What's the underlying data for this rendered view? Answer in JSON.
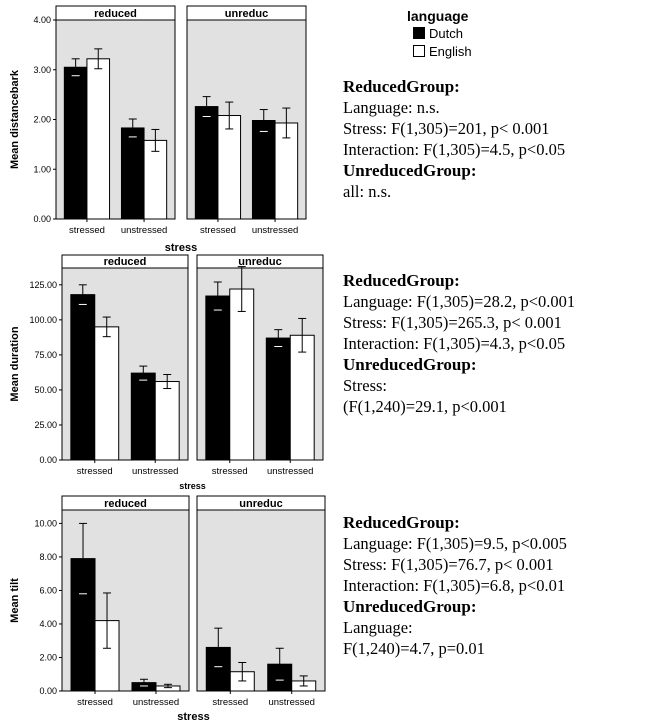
{
  "colors": {
    "dutch": "#000000",
    "english": "#ffffff",
    "panel_bg": "#e1e1e1",
    "frame": "#000000"
  },
  "legend": {
    "title": "language",
    "entries": [
      "Dutch",
      "English"
    ]
  },
  "chart_data": [
    {
      "type": "bar",
      "panels": [
        "reduced",
        "unreduc"
      ],
      "categories": [
        "stressed",
        "unstressed"
      ],
      "xlabel": "stress",
      "ylabel": "Mean distancebark",
      "ylim": [
        0,
        4.0
      ],
      "yticks": [
        "0.00",
        "1.00",
        "2.00",
        "3.00",
        "4.00"
      ],
      "error_bars": true,
      "series": [
        {
          "name": "Dutch",
          "values": {
            "reduced": [
              3.05,
              1.83
            ],
            "unreduc": [
              2.26,
              1.98
            ]
          },
          "err": {
            "reduced": [
              0.17,
              0.18
            ],
            "unreduc": [
              0.2,
              0.22
            ]
          }
        },
        {
          "name": "English",
          "values": {
            "reduced": [
              3.22,
              1.58
            ],
            "unreduc": [
              2.08,
              1.93
            ]
          },
          "err": {
            "reduced": [
              0.2,
              0.22
            ],
            "unreduc": [
              0.27,
              0.3
            ]
          }
        }
      ]
    },
    {
      "type": "bar",
      "panels": [
        "reduced",
        "unreduc"
      ],
      "categories": [
        "stressed",
        "unstressed"
      ],
      "xlabel": "stress",
      "ylabel": "Mean duration",
      "ylim": [
        0,
        137
      ],
      "yticks": [
        "0.00",
        "25.00",
        "50.00",
        "75.00",
        "100.00",
        "125.00"
      ],
      "error_bars": true,
      "series": [
        {
          "name": "Dutch",
          "values": {
            "reduced": [
              118,
              62
            ],
            "unreduc": [
              117,
              87
            ]
          },
          "err": {
            "reduced": [
              7,
              5
            ],
            "unreduc": [
              10,
              6
            ]
          }
        },
        {
          "name": "English",
          "values": {
            "reduced": [
              95,
              56
            ],
            "unreduc": [
              122,
              89
            ]
          },
          "err": {
            "reduced": [
              7,
              5
            ],
            "unreduc": [
              16,
              12
            ]
          }
        }
      ]
    },
    {
      "type": "bar",
      "panels": [
        "reduced",
        "unreduc"
      ],
      "categories": [
        "stressed",
        "unstressed"
      ],
      "xlabel": "stress",
      "ylabel": "Mean tilt",
      "ylim": [
        0,
        10.8
      ],
      "yticks": [
        "0.00",
        "2.00",
        "4.00",
        "6.00",
        "8.00",
        "10.00"
      ],
      "error_bars": true,
      "series": [
        {
          "name": "Dutch",
          "values": {
            "reduced": [
              7.9,
              0.5
            ],
            "unreduc": [
              2.6,
              1.6
            ]
          },
          "err": {
            "reduced": [
              2.1,
              0.2
            ],
            "unreduc": [
              1.15,
              0.95
            ]
          }
        },
        {
          "name": "English",
          "values": {
            "reduced": [
              4.2,
              0.3
            ],
            "unreduc": [
              1.15,
              0.6
            ]
          },
          "err": {
            "reduced": [
              1.65,
              0.1
            ],
            "unreduc": [
              0.55,
              0.3
            ]
          }
        }
      ]
    }
  ],
  "stats": [
    [
      {
        "text": "ReducedGroup:",
        "bold": true
      },
      {
        "text": "Language: n.s.",
        "bold": false
      },
      {
        "text": "Stress: F(1,305)=201, p< 0.001",
        "bold": false
      },
      {
        "text": "Interaction: F(1,305)=4.5, p<0.05",
        "bold": false
      },
      {
        "text": "UnreducedGroup:",
        "bold": true
      },
      {
        "text": "all: n.s.",
        "bold": false
      }
    ],
    [
      {
        "text": "ReducedGroup:",
        "bold": true
      },
      {
        "text": "Language: F(1,305)=28.2, p<0.001",
        "bold": false
      },
      {
        "text": "Stress: F(1,305)=265.3, p< 0.001",
        "bold": false
      },
      {
        "text": "Interaction: F(1,305)=4.3, p<0.05",
        "bold": false
      },
      {
        "text": "UnreducedGroup:",
        "bold": true
      },
      {
        "text": "Stress:",
        "bold": false
      },
      {
        "text": "(F(1,240)=29.1, p<0.001",
        "bold": false
      }
    ],
    [
      {
        "text": "ReducedGroup:",
        "bold": true
      },
      {
        "text": "Language: F(1,305)=9.5, p<0.005",
        "bold": false
      },
      {
        "text": "Stress: F(1,305)=76.7,  p< 0.001",
        "bold": false
      },
      {
        "text": "Interaction: F(1,305)=6.8,  p<0.01",
        "bold": false
      },
      {
        "text": "UnreducedGroup:",
        "bold": true
      },
      {
        "text": "Language:",
        "bold": false
      },
      {
        "text": "F(1,240)=4.7, p=0.01",
        "bold": false
      }
    ]
  ]
}
